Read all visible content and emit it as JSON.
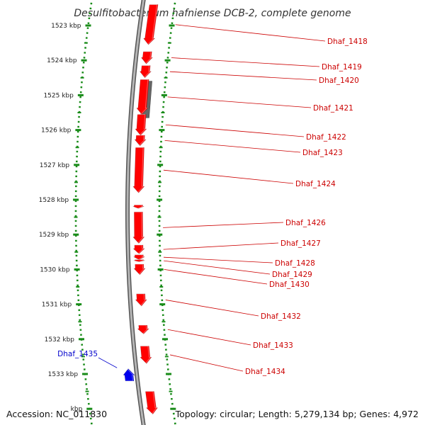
{
  "title": "Desulfitobacterium hafniense DCB-2, complete genome",
  "footer": {
    "accession": "Accession: NC_011830",
    "topology": "Topology: circular; Length: 5,279,134 bp; Genes: 4,972"
  },
  "colors": {
    "forward_gene": "#ff0000",
    "reverse_gene": "#0000ee",
    "other_feature": "#666666",
    "ruler_ticks": "#1a8c1a",
    "backbone": "#888888",
    "label_forward": "#cc0000",
    "label_reverse": "#0000cc"
  },
  "ruler": {
    "unit": "kbp",
    "ticks": [
      {
        "kbp": 1523,
        "label": "1523 kbp"
      },
      {
        "kbp": 1524,
        "label": "1524 kbp"
      },
      {
        "kbp": 1525,
        "label": "1525 kbp"
      },
      {
        "kbp": 1526,
        "label": "1526 kbp"
      },
      {
        "kbp": 1527,
        "label": "1527 kbp"
      },
      {
        "kbp": 1528,
        "label": "1528 kbp"
      },
      {
        "kbp": 1529,
        "label": "1529 kbp"
      },
      {
        "kbp": 1530,
        "label": "1530 kbp"
      },
      {
        "kbp": 1531,
        "label": "1531 kbp"
      },
      {
        "kbp": 1532,
        "label": "1532 kbp"
      },
      {
        "kbp": 1533,
        "label": "1533 kbp"
      },
      {
        "kbp": 1534,
        "label": "kbp"
      }
    ]
  },
  "genes": [
    {
      "name": "Dhaf_1418",
      "strand": "+",
      "start_kbp": 1522.4,
      "end_kbp": 1523.55
    },
    {
      "name": "Dhaf_1419",
      "strand": "+",
      "start_kbp": 1523.75,
      "end_kbp": 1524.1
    },
    {
      "name": "Dhaf_1420",
      "strand": "+",
      "start_kbp": 1524.15,
      "end_kbp": 1524.5
    },
    {
      "name": "Dhaf_1421",
      "strand": "+",
      "start_kbp": 1524.55,
      "end_kbp": 1525.55
    },
    {
      "name": "Dhaf_1422",
      "strand": "+",
      "start_kbp": 1525.55,
      "end_kbp": 1526.15
    },
    {
      "name": "Dhaf_1423",
      "strand": "+",
      "start_kbp": 1526.15,
      "end_kbp": 1526.45
    },
    {
      "name": "Dhaf_1424",
      "strand": "+",
      "start_kbp": 1526.5,
      "end_kbp": 1527.8
    },
    {
      "name": "Dhaf_1426",
      "strand": "+",
      "start_kbp": 1528.35,
      "end_kbp": 1529.25
    },
    {
      "name": "Dhaf_1427",
      "strand": "+",
      "start_kbp": 1529.3,
      "end_kbp": 1529.55
    },
    {
      "name": "Dhaf_1428",
      "strand": "+",
      "start_kbp": 1529.58,
      "end_kbp": 1529.72
    },
    {
      "name": "Dhaf_1429",
      "strand": "+",
      "start_kbp": 1529.72,
      "end_kbp": 1529.78
    },
    {
      "name": "Dhaf_1430",
      "strand": "+",
      "start_kbp": 1529.85,
      "end_kbp": 1530.15
    },
    {
      "name": "Dhaf_1432",
      "strand": "+",
      "start_kbp": 1530.7,
      "end_kbp": 1531.05
    },
    {
      "name": "Dhaf_1433",
      "strand": "+",
      "start_kbp": 1531.6,
      "end_kbp": 1531.85
    },
    {
      "name": "Dhaf_1434",
      "strand": "+",
      "start_kbp": 1532.2,
      "end_kbp": 1532.7
    },
    {
      "name": "Dhaf_1435",
      "strand": "-",
      "start_kbp": 1532.85,
      "end_kbp": 1533.2
    }
  ],
  "unlabeled_genes": [
    {
      "strand": "+",
      "start_kbp": 1528.15,
      "end_kbp": 1528.25
    },
    {
      "strand": "+",
      "start_kbp": 1533.5,
      "end_kbp": 1534.15
    }
  ],
  "other_features": [
    {
      "strand": "+",
      "start_kbp": 1524.6,
      "end_kbp": 1525.65
    }
  ]
}
